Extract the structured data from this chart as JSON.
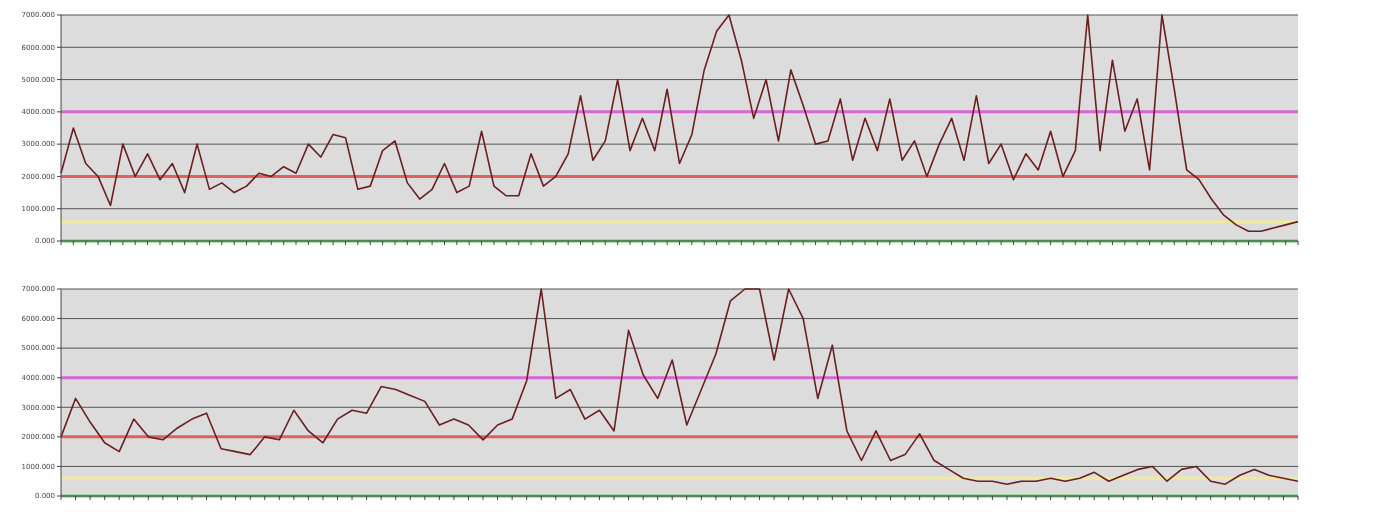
{
  "chart_data": [
    {
      "type": "line",
      "categories": [
        null,
        null,
        null,
        null,
        null,
        null,
        null,
        null,
        null,
        null,
        null,
        null,
        null,
        null,
        null,
        null,
        null,
        null,
        null,
        null,
        null,
        null,
        null,
        null,
        null,
        null,
        null,
        null,
        null,
        null,
        null,
        null,
        null,
        null,
        null,
        null,
        null,
        null,
        null,
        null,
        null,
        null,
        null,
        null,
        null,
        null,
        null,
        null,
        null,
        null,
        null,
        null,
        null,
        null,
        null,
        null,
        null,
        null,
        null,
        null,
        null,
        null,
        null,
        null,
        null,
        null,
        null,
        null,
        null,
        null,
        null,
        null,
        null,
        null,
        null,
        null,
        null,
        null,
        null,
        null,
        null,
        null,
        null,
        null,
        null,
        null,
        null,
        null,
        null,
        null,
        null,
        null,
        null,
        null,
        null,
        null,
        null,
        null,
        null,
        null,
        null
      ],
      "series": [
        {
          "color": "#6b1f1f",
          "values": [
            2100,
            3500,
            2400,
            2000,
            1100,
            3000,
            2000,
            2700,
            1900,
            2400,
            1500,
            3000,
            1600,
            1800,
            1500,
            1700,
            2100,
            2000,
            2300,
            2100,
            3000,
            2600,
            3300,
            3200,
            1600,
            1700,
            2800,
            3100,
            1800,
            1300,
            1600,
            2400,
            1500,
            1700,
            3400,
            1700,
            1400,
            1400,
            2700,
            1700,
            2000,
            2700,
            4500,
            2500,
            3100,
            5000,
            2800,
            3800,
            2800,
            4700,
            2400,
            3300,
            5300,
            6500,
            7000,
            5600,
            3800,
            5000,
            3100,
            5300,
            4200,
            3000,
            3100,
            4400,
            2500,
            3800,
            2800,
            4400,
            2500,
            3100,
            2000,
            3000,
            3800,
            2500,
            4500,
            2400,
            3000,
            1900,
            2700,
            2200,
            3400,
            2000,
            2800,
            7000,
            2800,
            5600,
            3400,
            4400,
            2200,
            7000,
            4700,
            2200,
            1900,
            1300,
            800,
            500,
            300,
            300,
            400,
            500,
            600
          ]
        }
      ],
      "ylim": [
        0,
        7000
      ],
      "yticks": [
        {
          "value": 0,
          "label": "0.000"
        },
        {
          "value": 1000,
          "label": "1000.000"
        },
        {
          "value": 2000,
          "label": "2000.000"
        },
        {
          "value": 3000,
          "label": "3000.000"
        },
        {
          "value": 4000,
          "label": "4000.000"
        },
        {
          "value": 5000,
          "label": "5000.000"
        },
        {
          "value": 6000,
          "label": "6000.000"
        },
        {
          "value": 7000,
          "label": "7000.000"
        }
      ],
      "grid": "y",
      "tick_labels": "y",
      "ref_lines": [
        {
          "axis": "y",
          "value": 4000,
          "color": "#d966d6"
        },
        {
          "axis": "y",
          "value": 2000,
          "color": "#e06060"
        },
        {
          "axis": "y",
          "value": 600,
          "color": "#eeeaa0"
        },
        {
          "axis": "y",
          "value": 0,
          "color": "#66cc66"
        }
      ]
    },
    {
      "type": "line",
      "categories": [
        null,
        null,
        null,
        null,
        null,
        null,
        null,
        null,
        null,
        null,
        null,
        null,
        null,
        null,
        null,
        null,
        null,
        null,
        null,
        null,
        null,
        null,
        null,
        null,
        null,
        null,
        null,
        null,
        null,
        null,
        null,
        null,
        null,
        null,
        null,
        null,
        null,
        null,
        null,
        null,
        null,
        null,
        null,
        null,
        null,
        null,
        null,
        null,
        null,
        null,
        null,
        null,
        null,
        null,
        null,
        null,
        null,
        null,
        null,
        null,
        null,
        null,
        null,
        null,
        null,
        null,
        null,
        null,
        null,
        null,
        null,
        null,
        null,
        null,
        null,
        null,
        null,
        null,
        null,
        null,
        null,
        null,
        null,
        null,
        null,
        null
      ],
      "series": [
        {
          "color": "#6b1f1f",
          "values": [
            2000,
            3300,
            2500,
            1800,
            1500,
            2600,
            2000,
            1900,
            2300,
            2600,
            2800,
            1600,
            1500,
            1400,
            2000,
            1900,
            2900,
            2200,
            1800,
            2600,
            2900,
            2800,
            3700,
            3600,
            3400,
            3200,
            2400,
            2600,
            2400,
            1900,
            2400,
            2600,
            3900,
            7000,
            3300,
            3600,
            2600,
            2900,
            2200,
            5600,
            4100,
            3300,
            4600,
            2400,
            3600,
            4800,
            6600,
            7000,
            7000,
            4600,
            7000,
            6000,
            3300,
            5100,
            2200,
            1200,
            2200,
            1200,
            1400,
            2100,
            1200,
            900,
            600,
            500,
            500,
            400,
            500,
            500,
            600,
            500,
            600,
            800,
            500,
            700,
            900,
            1000,
            500,
            900,
            1000,
            500,
            400,
            700,
            900,
            700,
            600,
            500
          ]
        }
      ],
      "ylim": [
        0,
        7000
      ],
      "yticks": [
        {
          "value": 0,
          "label": "0.000"
        },
        {
          "value": 1000,
          "label": "1000.000"
        },
        {
          "value": 2000,
          "label": "2000.000"
        },
        {
          "value": 3000,
          "label": "3000.000"
        },
        {
          "value": 4000,
          "label": "4000.000"
        },
        {
          "value": 5000,
          "label": "5000.000"
        },
        {
          "value": 6000,
          "label": "6000.000"
        },
        {
          "value": 7000,
          "label": "7000.000"
        }
      ],
      "grid": "y",
      "tick_labels": "y",
      "ref_lines": [
        {
          "axis": "y",
          "value": 4000,
          "color": "#d966d6"
        },
        {
          "axis": "y",
          "value": 2000,
          "color": "#e06060"
        },
        {
          "axis": "y",
          "value": 600,
          "color": "#eeeaa0"
        },
        {
          "axis": "y",
          "value": 0,
          "color": "#66cc66"
        }
      ]
    }
  ]
}
